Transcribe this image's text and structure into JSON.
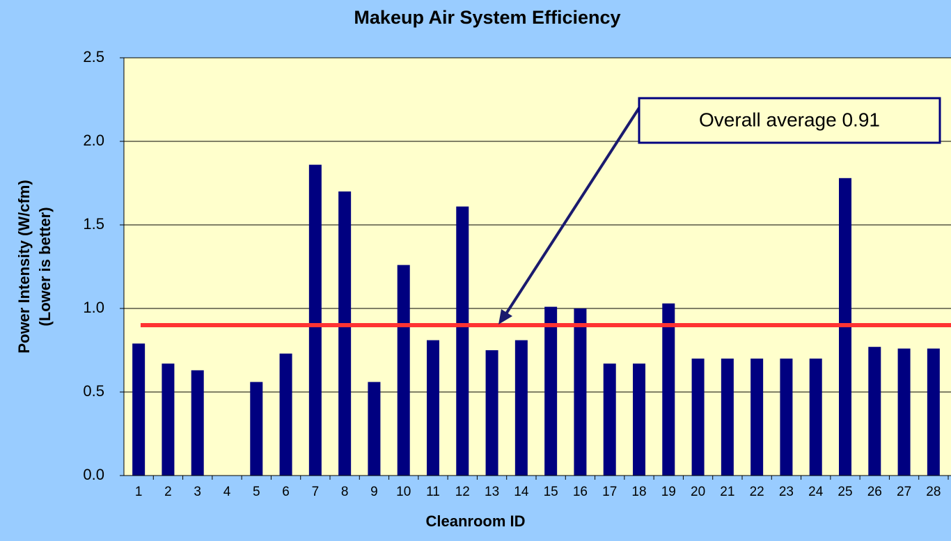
{
  "chart_data": {
    "type": "bar",
    "title": "Makeup Air System Efficiency",
    "x_label": "Cleanroom ID",
    "y_label": [
      "Power Intensity (W/cfm)",
      "(Lower is better)"
    ],
    "categories": [
      "1",
      "2",
      "3",
      "4",
      "5",
      "6",
      "7",
      "8",
      "9",
      "10",
      "11",
      "12",
      "13",
      "14",
      "15",
      "16",
      "17",
      "18",
      "19",
      "20",
      "21",
      "22",
      "23",
      "24",
      "25",
      "26",
      "27",
      "28"
    ],
    "values": [
      0.79,
      0.67,
      0.63,
      null,
      0.56,
      0.73,
      1.86,
      1.7,
      0.56,
      1.26,
      0.81,
      1.61,
      0.75,
      0.81,
      1.01,
      1.0,
      0.67,
      0.67,
      1.03,
      0.7,
      0.7,
      0.7,
      0.7,
      0.7,
      1.78,
      0.77,
      0.76,
      0.76
    ],
    "color": "#000080",
    "ylim": [
      0,
      2.5
    ],
    "yticks": [
      {
        "value": 0,
        "label": "0.0"
      },
      0.5,
      {
        "value": 1,
        "label": "1.0"
      },
      1.5,
      {
        "value": 2,
        "label": "2.0"
      },
      2.5
    ],
    "grid": true,
    "reference_line": {
      "value": 0.9,
      "color": "#ff3333"
    },
    "annotation": "Overall average 0.91"
  }
}
